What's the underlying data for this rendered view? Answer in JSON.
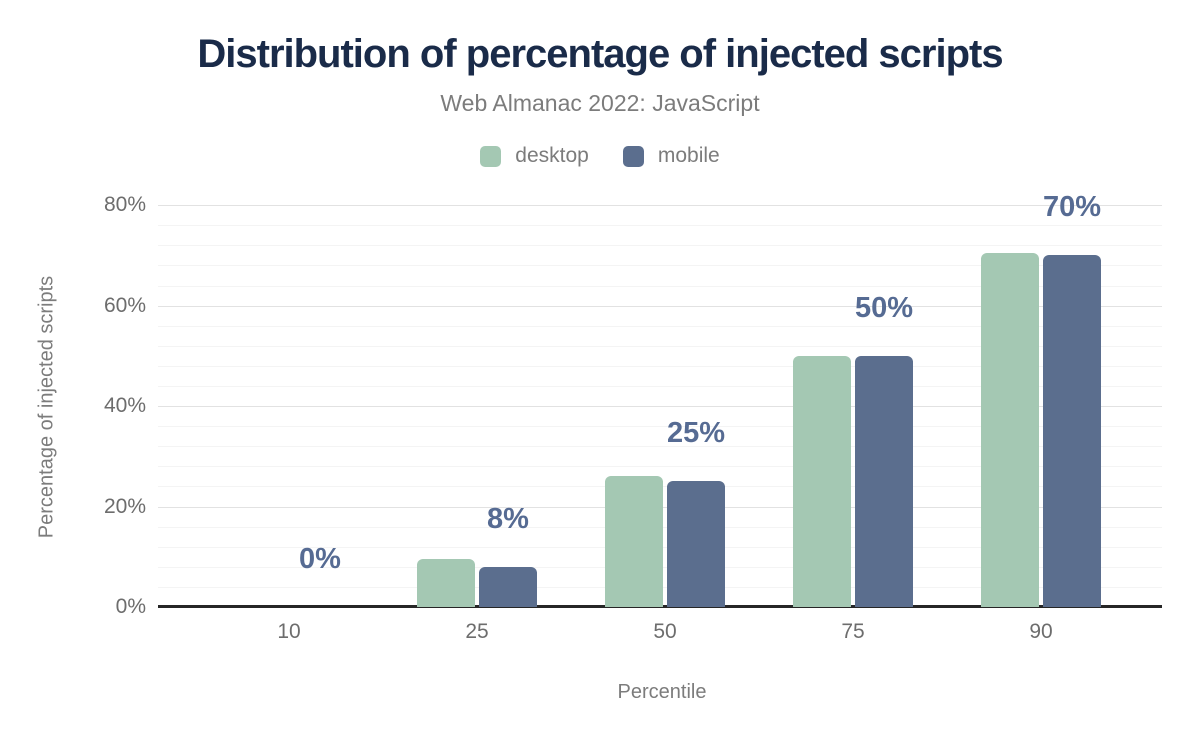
{
  "header": {
    "title": "Distribution of percentage of injected scripts",
    "subtitle": "Web Almanac 2022: JavaScript"
  },
  "chart_data": {
    "type": "bar",
    "title": "Distribution of percentage of injected scripts",
    "subtitle": "Web Almanac 2022: JavaScript",
    "xlabel": "Percentile",
    "ylabel": "Percentage of injected scripts",
    "categories": [
      "10",
      "25",
      "50",
      "75",
      "90"
    ],
    "series": [
      {
        "name": "desktop",
        "color": "#a4c8b3",
        "values": [
          0,
          9.5,
          26,
          50,
          70.5
        ]
      },
      {
        "name": "mobile",
        "color": "#5b6e8e",
        "values": [
          0,
          8,
          25,
          50,
          70
        ]
      }
    ],
    "data_labels": {
      "on_series": "mobile",
      "texts": [
        "0%",
        "8%",
        "25%",
        "50%",
        "70%"
      ],
      "color": "#566b93"
    },
    "y_axis": {
      "tick_values": [
        0,
        20,
        40,
        60,
        80
      ],
      "tick_labels": [
        "0%",
        "20%",
        "40%",
        "60%",
        "80%"
      ],
      "max": 84,
      "minor_grid_step": 4,
      "major_grid_step": 20
    },
    "grid": true,
    "legend_position": "top"
  },
  "colors": {
    "background": "#ffffff",
    "title": "#1a2b49",
    "muted_text": "#7c7c7c",
    "tick_text": "#6d6d6d",
    "axis_line": "#262626",
    "grid_major": "#e2e2e2",
    "grid_minor": "#f4f4f4",
    "data_label": "#566b93",
    "desktop": "#a4c8b3",
    "mobile": "#5b6e8e"
  }
}
